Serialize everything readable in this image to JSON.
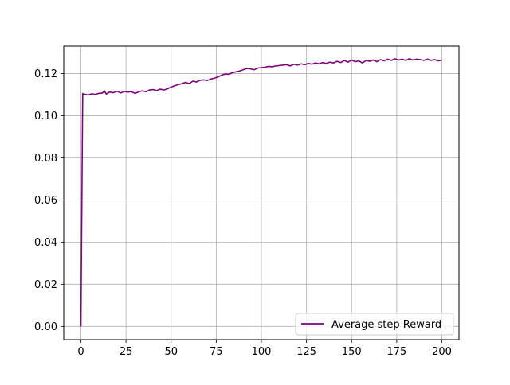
{
  "chart_data": {
    "type": "line",
    "title": "",
    "xlabel": "",
    "ylabel": "",
    "xlim": [
      -9.5,
      209.5
    ],
    "ylim": [
      -0.0063,
      0.133
    ],
    "xticks": [
      0,
      25,
      50,
      75,
      100,
      125,
      150,
      175,
      200
    ],
    "yticks": [
      0.0,
      0.02,
      0.04,
      0.06,
      0.08,
      0.1,
      0.12
    ],
    "xtick_labels": [
      "0",
      "25",
      "50",
      "75",
      "100",
      "125",
      "150",
      "175",
      "200"
    ],
    "ytick_labels": [
      "0.00",
      "0.02",
      "0.04",
      "0.06",
      "0.08",
      "0.10",
      "0.12"
    ],
    "grid": true,
    "legend": {
      "position": "lower-right",
      "entries": [
        "Average step Reward"
      ]
    },
    "series": [
      {
        "name": "Average step Reward",
        "color": "#800080",
        "x": [
          0,
          1,
          2,
          4,
          6,
          8,
          10,
          12,
          13,
          14,
          16,
          18,
          20,
          22,
          24,
          26,
          28,
          30,
          32,
          34,
          36,
          38,
          40,
          42,
          44,
          46,
          48,
          50,
          52,
          54,
          56,
          58,
          60,
          62,
          64,
          66,
          68,
          70,
          72,
          74,
          76,
          78,
          80,
          82,
          84,
          86,
          88,
          90,
          92,
          94,
          96,
          98,
          100,
          102,
          104,
          106,
          108,
          110,
          112,
          114,
          116,
          118,
          120,
          122,
          124,
          126,
          128,
          130,
          132,
          134,
          136,
          138,
          140,
          142,
          144,
          146,
          148,
          150,
          152,
          154,
          156,
          158,
          160,
          162,
          164,
          166,
          168,
          170,
          172,
          174,
          176,
          178,
          180,
          182,
          184,
          186,
          188,
          190,
          192,
          194,
          196,
          198,
          200
        ],
        "y": [
          0.0,
          0.1105,
          0.1102,
          0.1098,
          0.1104,
          0.1101,
          0.1106,
          0.1108,
          0.1118,
          0.1103,
          0.1112,
          0.1109,
          0.1116,
          0.1108,
          0.1115,
          0.1112,
          0.1114,
          0.1106,
          0.1113,
          0.1118,
          0.1114,
          0.1122,
          0.1124,
          0.1119,
          0.1126,
          0.1122,
          0.1128,
          0.1136,
          0.1142,
          0.1148,
          0.1152,
          0.1158,
          0.1152,
          0.1164,
          0.116,
          0.1168,
          0.117,
          0.1167,
          0.1174,
          0.1178,
          0.1184,
          0.1192,
          0.1198,
          0.1196,
          0.1204,
          0.1208,
          0.1212,
          0.1218,
          0.1224,
          0.1222,
          0.1218,
          0.1226,
          0.1228,
          0.123,
          0.1234,
          0.1232,
          0.1236,
          0.1238,
          0.124,
          0.1242,
          0.1236,
          0.1244,
          0.124,
          0.1246,
          0.1242,
          0.1248,
          0.1244,
          0.125,
          0.1246,
          0.1252,
          0.1248,
          0.1254,
          0.125,
          0.1258,
          0.1252,
          0.1262,
          0.1254,
          0.1264,
          0.1256,
          0.126,
          0.125,
          0.1262,
          0.1258,
          0.1264,
          0.1256,
          0.1266,
          0.126,
          0.1268,
          0.1262,
          0.127,
          0.1264,
          0.1268,
          0.1262,
          0.127,
          0.1264,
          0.1268,
          0.1266,
          0.1262,
          0.1268,
          0.1262,
          0.1266,
          0.126,
          0.1264
        ]
      }
    ]
  }
}
